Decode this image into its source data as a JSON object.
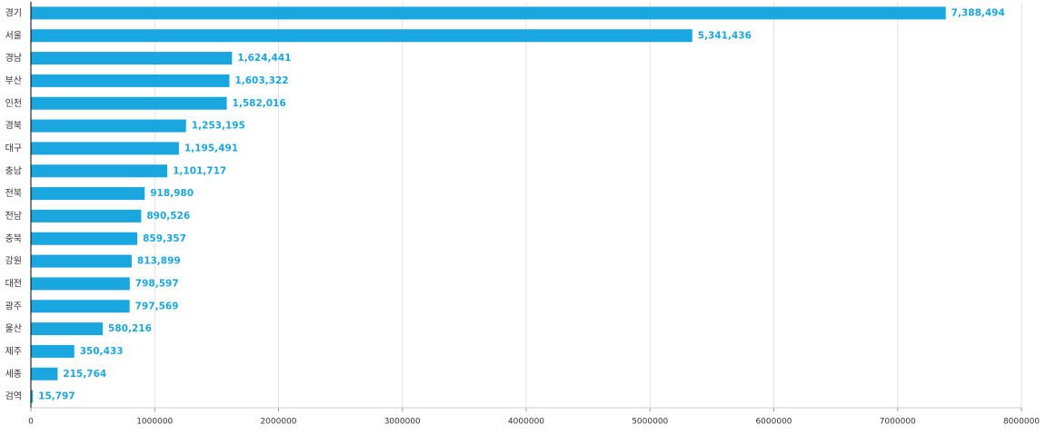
{
  "chart_data": {
    "type": "bar",
    "orientation": "horizontal",
    "categories": [
      "경기",
      "서울",
      "경남",
      "부산",
      "인천",
      "경북",
      "대구",
      "충남",
      "전북",
      "전남",
      "충북",
      "강원",
      "대전",
      "광주",
      "울산",
      "제주",
      "세종",
      "검역"
    ],
    "values": [
      7388494,
      5341436,
      1624441,
      1603322,
      1582016,
      1253195,
      1195491,
      1101717,
      918980,
      890526,
      859357,
      813899,
      798597,
      797569,
      580216,
      350433,
      215764,
      15797
    ],
    "value_labels": [
      "7,388,494",
      "5,341,436",
      "1,624,441",
      "1,603,322",
      "1,582,016",
      "1,253,195",
      "1,195,491",
      "1,101,717",
      "918,980",
      "890,526",
      "859,357",
      "813,899",
      "798,597",
      "797,569",
      "580,216",
      "350,433",
      "215,764",
      "15,797"
    ],
    "color": "#1aa6de",
    "xlim": [
      0,
      8000000
    ],
    "xticks": [
      0,
      1000000,
      2000000,
      3000000,
      4000000,
      5000000,
      6000000,
      7000000,
      8000000
    ],
    "grid": true
  }
}
